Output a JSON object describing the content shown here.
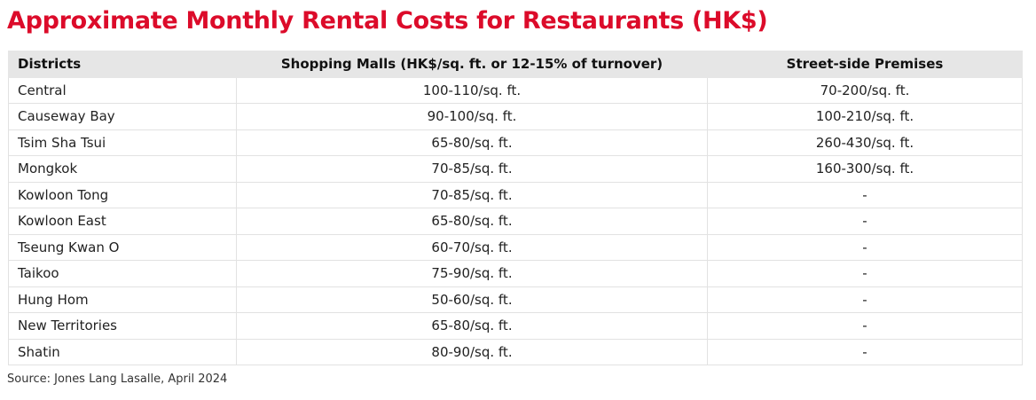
{
  "header": {
    "title": "Approximate Monthly Rental Costs for Restaurants (HK$)"
  },
  "table": {
    "columns": [
      "Districts",
      "Shopping Malls (HK$/sq. ft. or 12-15% of turnover)",
      "Street-side Premises"
    ],
    "rows": [
      [
        "Central",
        "100-110/sq. ft.",
        "70-200/sq. ft."
      ],
      [
        "Causeway Bay",
        "90-100/sq. ft.",
        "100-210/sq. ft."
      ],
      [
        "Tsim Sha Tsui",
        "65-80/sq. ft.",
        "260-430/sq. ft."
      ],
      [
        "Mongkok",
        "70-85/sq. ft.",
        "160-300/sq. ft."
      ],
      [
        "Kowloon Tong",
        "70-85/sq. ft.",
        "-"
      ],
      [
        "Kowloon East",
        "65-80/sq. ft.",
        "-"
      ],
      [
        "Tseung Kwan O",
        "60-70/sq. ft.",
        "-"
      ],
      [
        "Taikoo",
        "75-90/sq. ft.",
        "-"
      ],
      [
        "Hung Hom",
        "50-60/sq. ft.",
        "-"
      ],
      [
        "New Territories",
        "65-80/sq. ft.",
        "-"
      ],
      [
        "Shatin",
        "80-90/sq. ft.",
        "-"
      ]
    ]
  },
  "footer": {
    "source": "Source: Jones Lang Lasalle, April 2024"
  }
}
